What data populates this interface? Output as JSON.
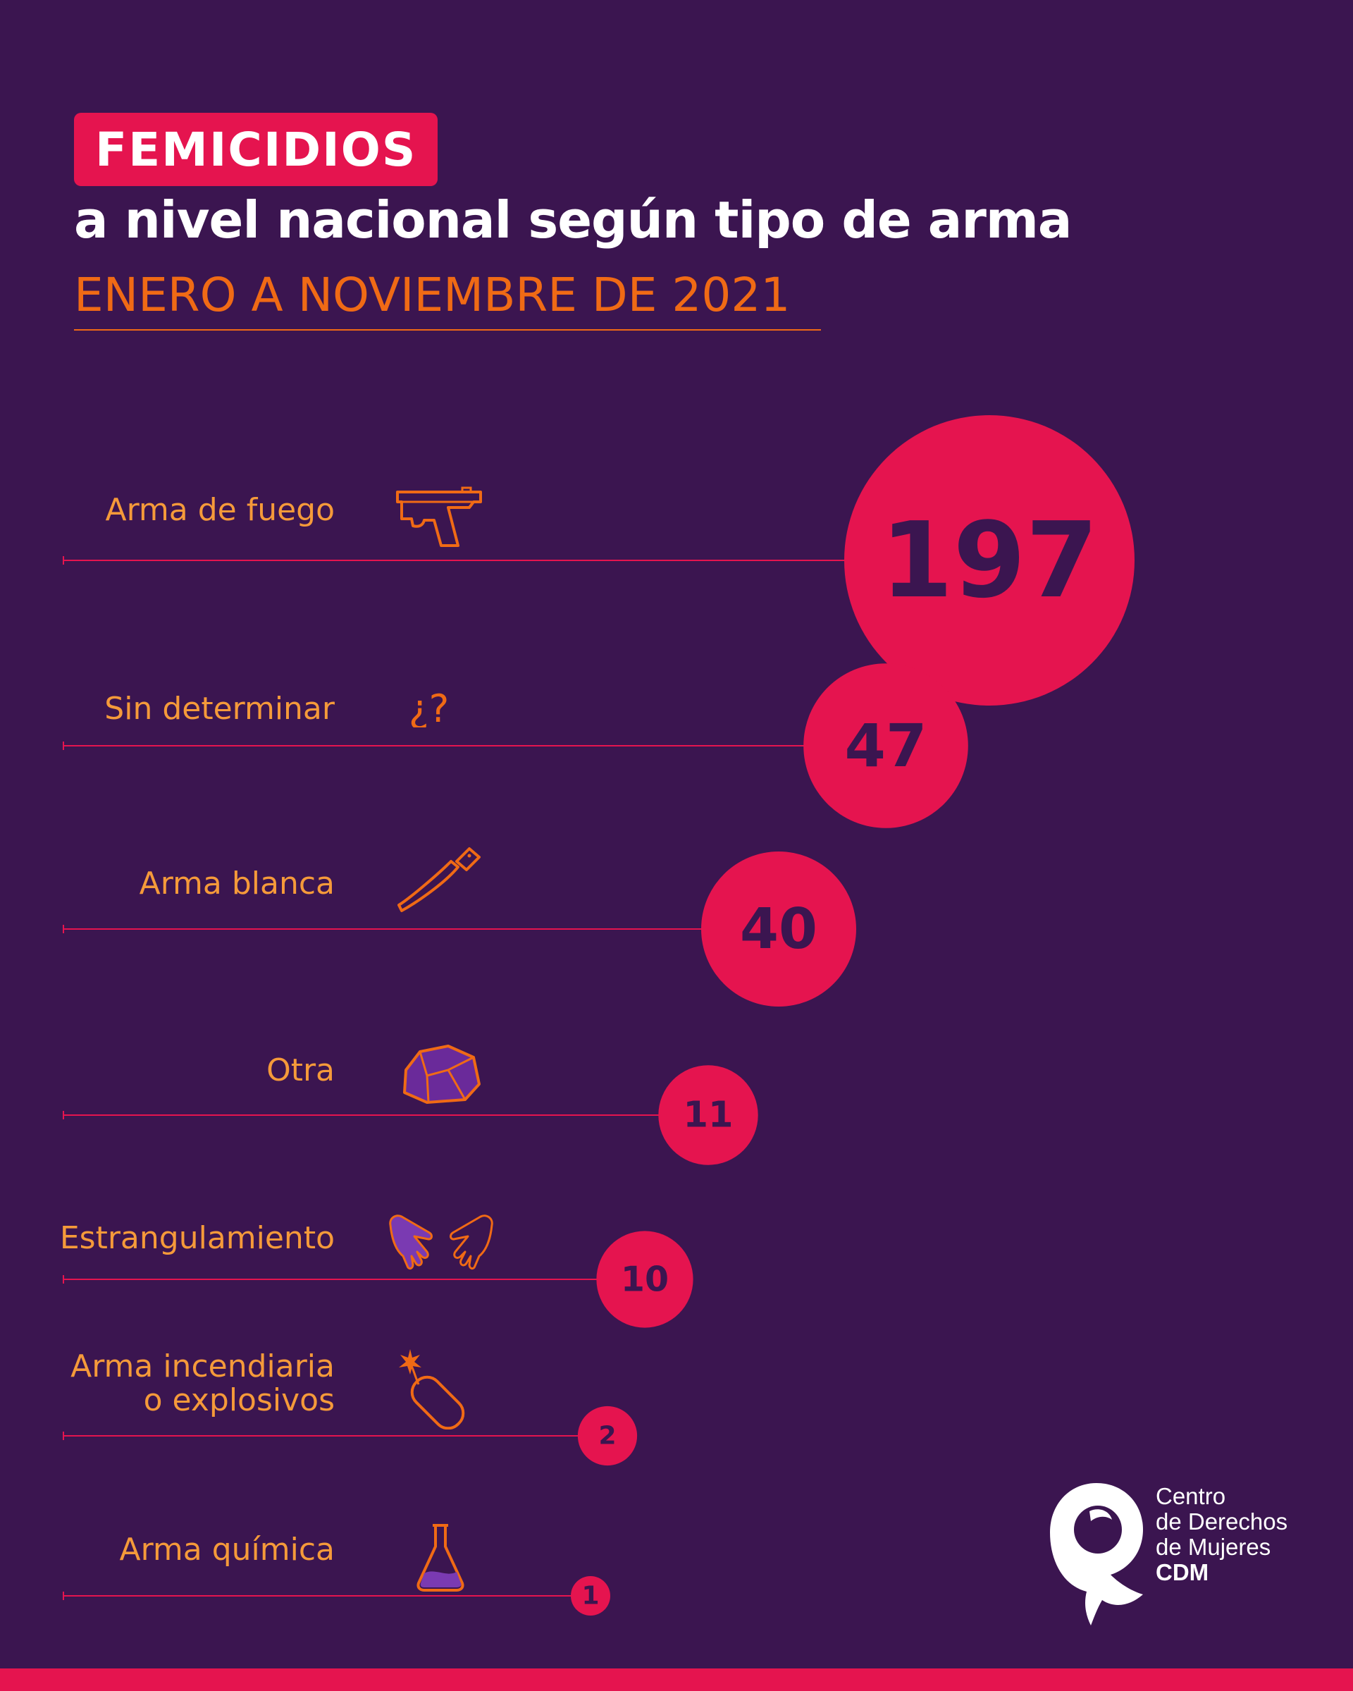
{
  "header": {
    "badge": "FEMICIDIOS",
    "subtitle": "a nivel nacional según tipo de arma",
    "period": "ENERO A NOVIEMBRE DE 2021"
  },
  "colors": {
    "background": "#3b1550",
    "accent_pink": "#e5144f",
    "accent_orange": "#f06a15",
    "label_orange": "#f59a3a",
    "number_text": "#3b1550"
  },
  "chart_data": {
    "type": "bubble",
    "categories": [
      "Arma de fuego",
      "Sin determinar",
      "Arma blanca",
      "Otra",
      "Estrangulamiento",
      "Arma incendiaria\no explosivos",
      "Arma química"
    ],
    "values": [
      197,
      47,
      40,
      11,
      10,
      2,
      1
    ],
    "icons": [
      "pistol-icon",
      "question-marks-icon",
      "machete-icon",
      "rock-icon",
      "hands-icon",
      "dynamite-icon",
      "flask-icon"
    ]
  },
  "logo": {
    "line1": "Centro",
    "line2": "de Derechos",
    "line3": "de Mujeres",
    "line4": "CDM"
  }
}
